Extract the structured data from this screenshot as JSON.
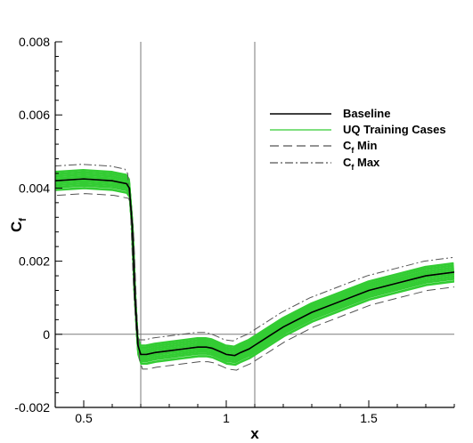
{
  "chart_data": {
    "type": "line",
    "xlabel": "x",
    "ylabel_main": "C",
    "ylabel_sub": "f",
    "xlim": [
      0.4,
      1.8
    ],
    "ylim": [
      -0.002,
      0.008
    ],
    "x_ticks": [
      {
        "value": 0.5,
        "label": "0.5"
      },
      {
        "value": 1.0,
        "label": "1"
      },
      {
        "value": 1.5,
        "label": "1.5"
      }
    ],
    "y_ticks": [
      {
        "value": -0.002,
        "label": "-0.002"
      },
      {
        "value": 0,
        "label": "0"
      },
      {
        "value": 0.002,
        "label": "0.002"
      },
      {
        "value": 0.004,
        "label": "0.004"
      },
      {
        "value": 0.006,
        "label": "0.006"
      },
      {
        "value": 0.008,
        "label": "0.008"
      }
    ],
    "reference_lines": {
      "vertical_x": [
        0.7,
        1.1
      ],
      "horizontal_y": [
        0
      ]
    },
    "legend": {
      "placement": "right",
      "entries": [
        {
          "label": "Baseline",
          "style": "solid",
          "color": "#000000"
        },
        {
          "label": "UQ Training Cases",
          "style": "solid",
          "color": "#33cc33"
        },
        {
          "label": "C",
          "label_sub": "f",
          "label_suffix": " Min",
          "style": "dashed",
          "color": "#555555"
        },
        {
          "label": "C",
          "label_sub": "f",
          "label_suffix": " Max",
          "style": "dashdot",
          "color": "#555555"
        }
      ]
    },
    "series": [
      {
        "name": "Baseline",
        "x": [
          0.4,
          0.5,
          0.6,
          0.65,
          0.66,
          0.67,
          0.68,
          0.69,
          0.7,
          0.72,
          0.75,
          0.8,
          0.85,
          0.9,
          0.93,
          0.95,
          0.98,
          1.0,
          1.03,
          1.05,
          1.08,
          1.1,
          1.15,
          1.2,
          1.3,
          1.4,
          1.5,
          1.6,
          1.7,
          1.8
        ],
        "y": [
          0.0042,
          0.00425,
          0.0042,
          0.00412,
          0.004,
          0.003,
          0.001,
          -0.0003,
          -0.00055,
          -0.00055,
          -0.0005,
          -0.00045,
          -0.0004,
          -0.00035,
          -0.00035,
          -0.00038,
          -0.00048,
          -0.00055,
          -0.00058,
          -0.0005,
          -0.0004,
          -0.0003,
          -5e-05,
          0.0002,
          0.0006,
          0.0009,
          0.0012,
          0.0014,
          0.0016,
          0.0017
        ]
      },
      {
        "name": "UQ Training Cases",
        "y_offsets": [
          -0.00025,
          -0.00018,
          -0.00012,
          -6e-05,
          0.0,
          6e-05,
          0.00012,
          0.00018,
          0.00024
        ]
      },
      {
        "name": "C_f Min",
        "y_offset": -0.0004,
        "x_shift": 0.006
      },
      {
        "name": "C_f Max",
        "y_offset": 0.0004,
        "x_shift": -0.006
      }
    ]
  }
}
